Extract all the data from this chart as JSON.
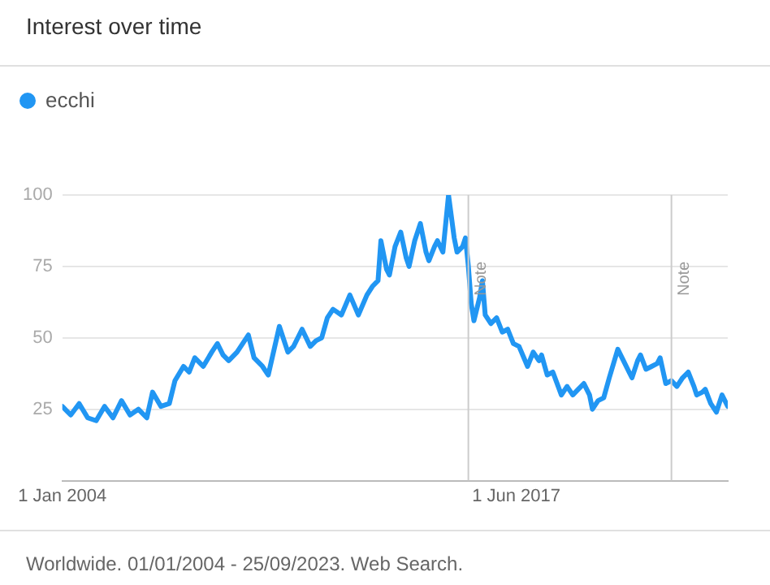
{
  "chart_data": {
    "type": "line",
    "title": "Interest over time",
    "x": [
      "2004-01",
      "2004-04",
      "2004-07",
      "2004-10",
      "2005-01",
      "2005-04",
      "2005-07",
      "2005-10",
      "2006-01",
      "2006-04",
      "2006-07",
      "2006-09",
      "2006-12",
      "2007-03",
      "2007-05",
      "2007-08",
      "2007-10",
      "2007-12",
      "2008-03",
      "2008-06",
      "2008-08",
      "2008-10",
      "2008-12",
      "2009-03",
      "2009-07",
      "2009-09",
      "2009-12",
      "2010-02",
      "2010-06",
      "2010-09",
      "2010-11",
      "2011-02",
      "2011-05",
      "2011-07",
      "2011-09",
      "2011-11",
      "2012-01",
      "2012-04",
      "2012-07",
      "2012-10",
      "2013-01",
      "2013-03",
      "2013-05",
      "2013-06",
      "2013-08",
      "2013-09",
      "2013-11",
      "2014-01",
      "2014-03",
      "2014-04",
      "2014-06",
      "2014-08",
      "2014-10",
      "2014-11",
      "2015-01",
      "2015-02",
      "2015-04",
      "2015-06",
      "2015-08",
      "2015-09",
      "2015-11",
      "2015-12",
      "2016-01",
      "2016-02",
      "2016-03",
      "2016-05",
      "2016-06",
      "2016-07",
      "2016-09",
      "2016-11",
      "2017-01",
      "2017-03",
      "2017-05",
      "2017-07",
      "2017-10",
      "2017-12",
      "2018-02",
      "2018-03",
      "2018-05",
      "2018-07",
      "2018-10",
      "2018-12",
      "2019-02",
      "2019-04",
      "2019-06",
      "2019-08",
      "2019-09",
      "2019-11",
      "2020-01",
      "2020-03",
      "2020-06",
      "2020-08",
      "2020-10",
      "2020-11",
      "2021-01",
      "2021-02",
      "2021-04",
      "2021-06",
      "2021-08",
      "2021-09",
      "2021-11",
      "2022-01",
      "2022-03",
      "2022-05",
      "2022-07",
      "2022-09",
      "2022-10",
      "2022-12",
      "2023-01",
      "2023-03",
      "2023-05",
      "2023-07",
      "2023-09"
    ],
    "series": [
      {
        "name": "ecchi",
        "color": "#2196f3",
        "values": [
          26,
          23,
          27,
          22,
          21,
          26,
          22,
          28,
          23,
          25,
          22,
          31,
          26,
          27,
          35,
          40,
          38,
          43,
          40,
          45,
          48,
          44,
          42,
          45,
          51,
          43,
          40,
          37,
          54,
          45,
          47,
          53,
          47,
          49,
          50,
          57,
          60,
          58,
          65,
          58,
          65,
          68,
          70,
          84,
          74,
          72,
          82,
          87,
          78,
          75,
          84,
          90,
          80,
          77,
          82,
          84,
          80,
          100,
          85,
          80,
          82,
          85,
          75,
          62,
          56,
          64,
          70,
          58,
          55,
          57,
          52,
          53,
          48,
          47,
          40,
          45,
          42,
          44,
          37,
          38,
          30,
          33,
          30,
          32,
          34,
          30,
          25,
          28,
          29,
          36,
          46,
          42,
          38,
          36,
          42,
          44,
          39,
          40,
          41,
          43,
          34,
          35,
          33,
          36,
          38,
          33,
          30,
          31,
          32,
          27,
          24,
          30,
          26
        ]
      }
    ],
    "xlim": [
      "2004-01",
      "2023-09"
    ],
    "xticks": [
      {
        "value": "2004-01",
        "label": "1 Jan 2004"
      },
      {
        "value": "2017-06",
        "label": "1 Jun 2017"
      }
    ],
    "ylim": [
      0,
      100
    ],
    "yticks": [
      25,
      50,
      75,
      100
    ],
    "grid": "y",
    "legend": "top left",
    "marker": "none",
    "line_style": "solid",
    "ref_lines": [
      {
        "axis": "x",
        "value": "2016-01",
        "label": "Note",
        "color": "#cccccc"
      },
      {
        "axis": "x",
        "value": "2022-01",
        "label": "Note",
        "color": "#cccccc"
      }
    ],
    "annotations": [
      "Worldwide. 01/01/2004 - 25/09/2023. Web Search."
    ]
  }
}
